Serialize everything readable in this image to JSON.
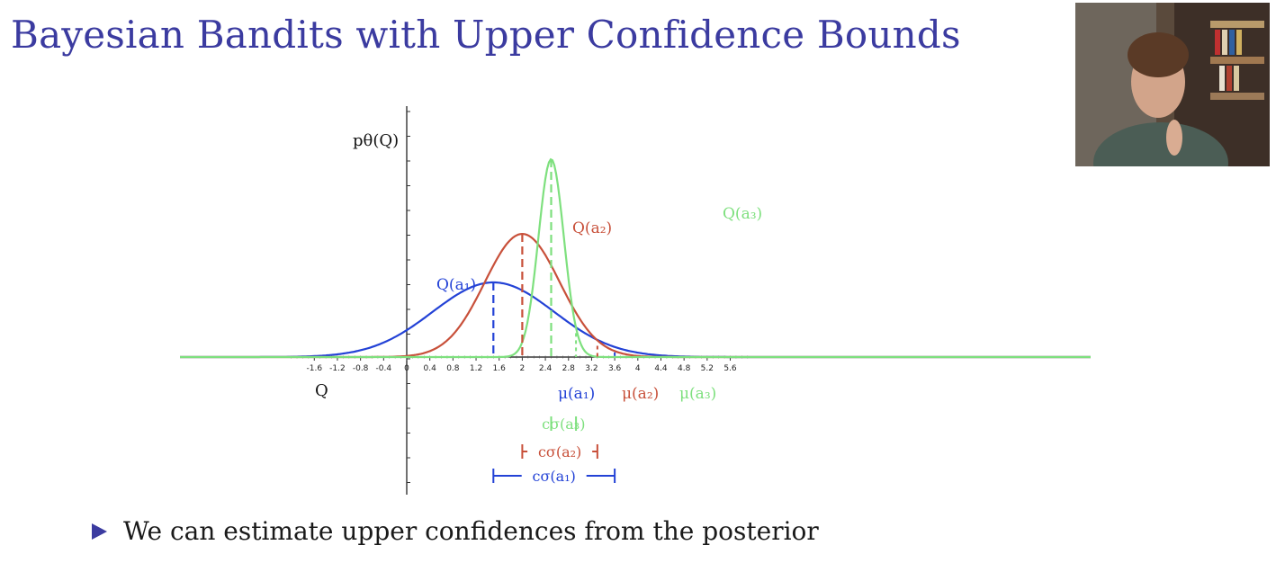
{
  "slide": {
    "title": "Bayesian Bandits with Upper Confidence Bounds",
    "bullet": "We can estimate upper confidences from the posterior"
  },
  "colors": {
    "title": "#3B3BA0",
    "a1": "#2342D6",
    "a2": "#C8503A",
    "a3": "#7EE07E",
    "axis": "#111111"
  },
  "chart_data": {
    "type": "line",
    "xlabel": "Q",
    "ylabel": "pθ(Q)",
    "xlim": [
      -2.0,
      5.9
    ],
    "x_ticks": [
      "-1.6",
      "-1.2",
      "-0.8",
      "-0.4",
      "0",
      "0.4",
      "0.8",
      "1.2",
      "1.6",
      "2",
      "2.4",
      "2.8",
      "3.2",
      "3.6",
      "4",
      "4.4",
      "4.8",
      "5.2",
      "5.6"
    ],
    "series": [
      {
        "name": "Q(a₁)",
        "mean": 1.5,
        "std": 1.05,
        "peak": 1.0,
        "color": "#2342D6",
        "mu_label": "μ(a₁)",
        "ucb_label": "cσ(a₁)",
        "ucb": 3.6
      },
      {
        "name": "Q(a₂)",
        "mean": 2.0,
        "std": 0.65,
        "peak": 1.65,
        "color": "#C8503A",
        "mu_label": "μ(a₂)",
        "ucb_label": "cσ(a₂)",
        "ucb": 3.3
      },
      {
        "name": "Q(a₃)",
        "mean": 2.5,
        "std": 0.22,
        "peak": 2.65,
        "color": "#7EE07E",
        "mu_label": "μ(a₃)",
        "ucb_label": "cσ(a₃)",
        "ucb": 2.93
      }
    ]
  },
  "webcam": {
    "icon": "presenter-video-icon"
  }
}
